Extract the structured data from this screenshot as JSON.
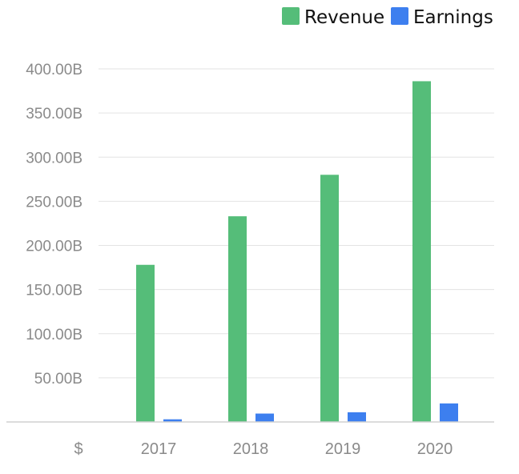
{
  "colors": {
    "revenue": "#55bd79",
    "earnings": "#3d7fef"
  },
  "chart_data": {
    "type": "bar",
    "categories": [
      "2017",
      "2018",
      "2019",
      "2020"
    ],
    "series": [
      {
        "name": "Revenue",
        "values": [
          178,
          233,
          280,
          386
        ]
      },
      {
        "name": "Earnings",
        "values": [
          3,
          9.5,
          11,
          21
        ]
      }
    ],
    "y_tick_labels": [
      "50.00B",
      "100.00B",
      "150.00B",
      "200.00B",
      "250.00B",
      "300.00B",
      "350.00B",
      "400.00B"
    ],
    "y_tick_values": [
      50,
      100,
      150,
      200,
      250,
      300,
      350,
      400
    ],
    "currency_label": "$",
    "ylim": [
      0,
      400
    ],
    "grid": true,
    "legend_position": "top-right",
    "title": "",
    "xlabel": "",
    "ylabel": ""
  }
}
